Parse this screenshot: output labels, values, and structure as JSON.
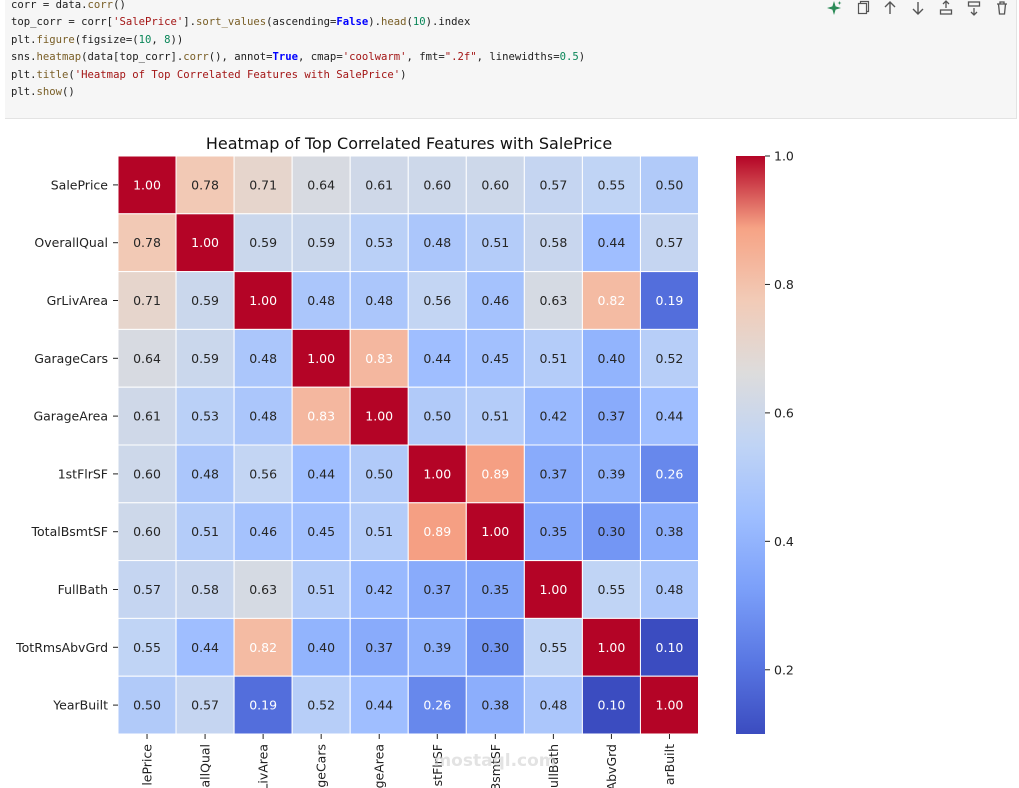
{
  "code_cell": {
    "lines": [
      [
        {
          "t": "corr = data."
        },
        {
          "t": "corr",
          "c": "fn"
        },
        {
          "t": "()"
        }
      ],
      [
        {
          "t": "top_corr = corr["
        },
        {
          "t": "'SalePrice'",
          "c": "str"
        },
        {
          "t": "]."
        },
        {
          "t": "sort_values",
          "c": "fn"
        },
        {
          "t": "(ascending="
        },
        {
          "t": "False",
          "c": "kw"
        },
        {
          "t": ")."
        },
        {
          "t": "head",
          "c": "fn"
        },
        {
          "t": "("
        },
        {
          "t": "10",
          "c": "num"
        },
        {
          "t": ").index"
        }
      ],
      [
        {
          "t": "plt."
        },
        {
          "t": "figure",
          "c": "fn"
        },
        {
          "t": "(figsize=("
        },
        {
          "t": "10",
          "c": "num"
        },
        {
          "t": ", "
        },
        {
          "t": "8",
          "c": "num"
        },
        {
          "t": "))"
        }
      ],
      [
        {
          "t": "sns."
        },
        {
          "t": "heatmap",
          "c": "fn"
        },
        {
          "t": "(data[top_corr]."
        },
        {
          "t": "corr",
          "c": "fn"
        },
        {
          "t": "(), annot="
        },
        {
          "t": "True",
          "c": "kw"
        },
        {
          "t": ", cmap="
        },
        {
          "t": "'coolwarm'",
          "c": "str"
        },
        {
          "t": ", fmt="
        },
        {
          "t": "\".2f\"",
          "c": "str"
        },
        {
          "t": ", linewidths="
        },
        {
          "t": "0.5",
          "c": "num"
        },
        {
          "t": ")"
        }
      ],
      [
        {
          "t": "plt."
        },
        {
          "t": "title",
          "c": "fn"
        },
        {
          "t": "("
        },
        {
          "t": "'Heatmap of Top Correlated Features with SalePrice'",
          "c": "str"
        },
        {
          "t": ")"
        }
      ],
      [
        {
          "t": "plt."
        },
        {
          "t": "show",
          "c": "fn"
        },
        {
          "t": "()"
        }
      ]
    ]
  },
  "toolbar": {
    "buttons": [
      {
        "name": "sparkle-icon",
        "color": "#2b8a57"
      },
      {
        "name": "copy-icon"
      },
      {
        "name": "arrow-up-icon"
      },
      {
        "name": "arrow-down-icon"
      },
      {
        "name": "insert-above-icon"
      },
      {
        "name": "insert-below-icon"
      },
      {
        "name": "delete-icon"
      }
    ]
  },
  "watermark": "mostaql.com",
  "chart_data": {
    "type": "heatmap",
    "title": "Heatmap of Top Correlated Features with SalePrice",
    "rows": [
      "SalePrice",
      "OverallQual",
      "GrLivArea",
      "GarageCars",
      "GarageArea",
      "1stFlrSF",
      "TotalBsmtSF",
      "FullBath",
      "TotRmsAbvGrd",
      "YearBuilt"
    ],
    "column_labels_visible": [
      "lePrice",
      "allQual",
      "LivArea",
      "ageCars",
      "ageArea",
      "stFlrSF",
      "3smtSF",
      "ullBath",
      "AbvGrd",
      "arBuilt"
    ],
    "values": [
      [
        1.0,
        0.78,
        0.71,
        0.64,
        0.61,
        0.6,
        0.6,
        0.57,
        0.55,
        0.5
      ],
      [
        0.78,
        1.0,
        0.59,
        0.59,
        0.53,
        0.48,
        0.51,
        0.58,
        0.44,
        0.57
      ],
      [
        0.71,
        0.59,
        1.0,
        0.48,
        0.48,
        0.56,
        0.46,
        0.63,
        0.82,
        0.19
      ],
      [
        0.64,
        0.59,
        0.48,
        1.0,
        0.83,
        0.44,
        0.45,
        0.51,
        0.4,
        0.52
      ],
      [
        0.61,
        0.53,
        0.48,
        0.83,
        1.0,
        0.5,
        0.51,
        0.42,
        0.37,
        0.44
      ],
      [
        0.6,
        0.48,
        0.56,
        0.44,
        0.5,
        1.0,
        0.89,
        0.37,
        0.39,
        0.26
      ],
      [
        0.6,
        0.51,
        0.46,
        0.45,
        0.51,
        0.89,
        1.0,
        0.35,
        0.3,
        0.38
      ],
      [
        0.57,
        0.58,
        0.63,
        0.51,
        0.42,
        0.37,
        0.35,
        1.0,
        0.55,
        0.48
      ],
      [
        0.55,
        0.44,
        0.82,
        0.4,
        0.37,
        0.39,
        0.3,
        0.55,
        1.0,
        0.1
      ],
      [
        0.5,
        0.57,
        0.19,
        0.52,
        0.44,
        0.26,
        0.38,
        0.48,
        0.1,
        1.0
      ]
    ],
    "colorbar": {
      "min": 0.1,
      "max": 1.0,
      "ticks": [
        0.2,
        0.4,
        0.6,
        0.8,
        1.0
      ],
      "tick_labels": [
        "0.2",
        "0.4",
        "0.6",
        "0.8",
        "1.0"
      ],
      "cmap": "coolwarm",
      "stops": [
        [
          0.0,
          "#3b4cc0"
        ],
        [
          0.125,
          "#5977e3"
        ],
        [
          0.25,
          "#7b9ff9"
        ],
        [
          0.375,
          "#9ebeff"
        ],
        [
          0.5,
          "#c0d4f5"
        ],
        [
          0.625,
          "#dddcdc"
        ],
        [
          0.75,
          "#f2cbb7"
        ],
        [
          0.875,
          "#f6a385"
        ],
        [
          1.0,
          "#b40426"
        ]
      ]
    },
    "annotation_format": ".2f",
    "grid": true
  }
}
